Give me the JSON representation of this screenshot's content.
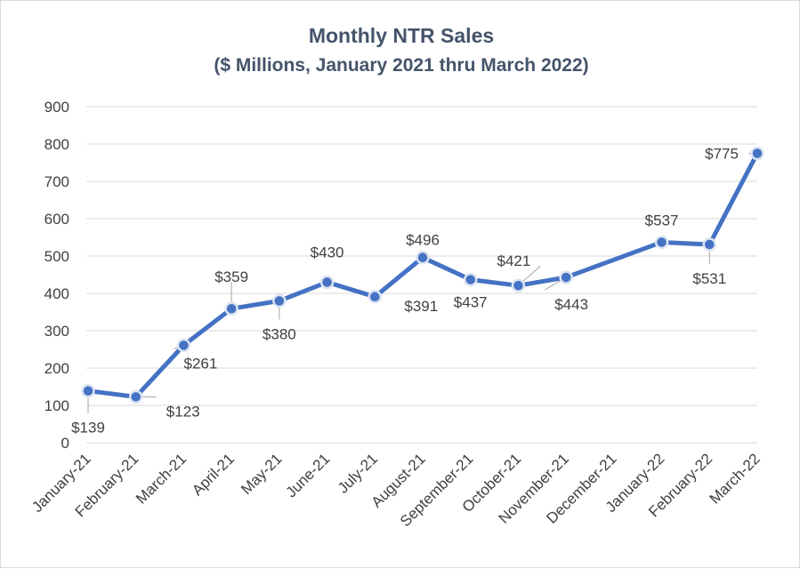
{
  "chart_data": {
    "type": "line",
    "title": "Monthly NTR Sales",
    "subtitle": "($ Millions, January 2021 thru March 2022)",
    "categories": [
      "January-21",
      "February-21",
      "March-21",
      "April-21",
      "May-21",
      "June-21",
      "July-21",
      "August-21",
      "September-21",
      "October-21",
      "November-21",
      "December-21",
      "January-22",
      "February-22",
      "March-22"
    ],
    "series": [
      {
        "values": [
          139,
          123,
          261,
          359,
          380,
          430,
          391,
          496,
          437,
          421,
          443,
          null,
          537,
          531,
          775
        ],
        "labels": [
          "$139",
          "$123",
          "$261",
          "$359",
          "$380",
          "$430",
          "$391",
          "$496",
          "$437",
          "$421",
          "$443",
          "",
          "$537",
          "$531",
          "$775"
        ]
      }
    ],
    "y_ticks": [
      "0",
      "100",
      "200",
      "300",
      "400",
      "500",
      "600",
      "700",
      "800",
      "900"
    ],
    "ylim": [
      0,
      900
    ],
    "grid": true,
    "legend": "none",
    "colors": {
      "line": "#4472c4",
      "grid": "#d9d9d9",
      "text": "#404040",
      "title": "#44546a"
    }
  }
}
